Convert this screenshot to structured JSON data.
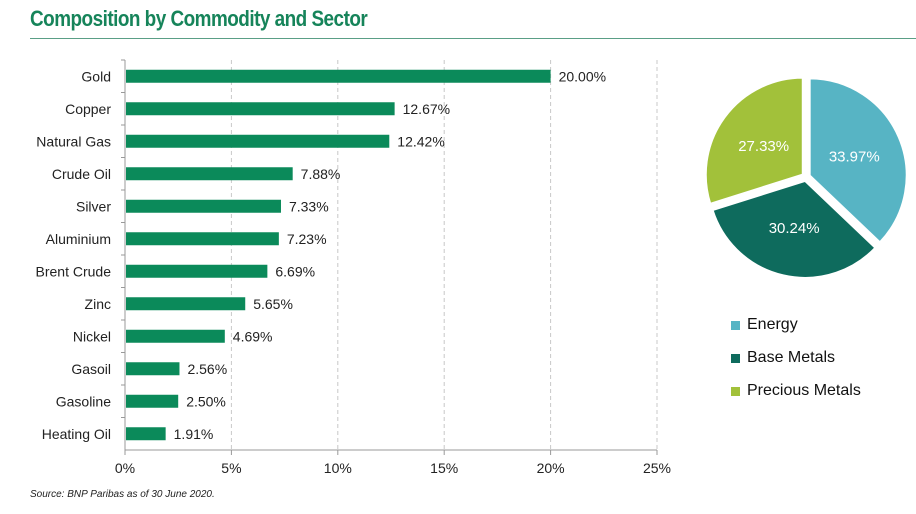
{
  "header": {
    "title": "Composition by Commodity and Sector"
  },
  "footer": {
    "source": "Source: BNP Paribas as of 30 June 2020."
  },
  "chart_data": [
    {
      "type": "bar",
      "orientation": "horizontal",
      "title": "",
      "xlabel": "",
      "ylabel": "",
      "categories": [
        "Gold",
        "Copper",
        "Natural Gas",
        "Crude Oil",
        "Silver",
        "Aluminium",
        "Brent Crude",
        "Zinc",
        "Nickel",
        "Gasoil",
        "Gasoline",
        "Heating Oil"
      ],
      "values": [
        20.0,
        12.67,
        12.42,
        7.88,
        7.33,
        7.23,
        6.69,
        5.65,
        4.69,
        2.56,
        2.5,
        1.91
      ],
      "value_labels": [
        "20.00%",
        "12.67%",
        "12.42%",
        "7.88%",
        "7.33%",
        "7.23%",
        "6.69%",
        "5.65%",
        "4.69%",
        "2.56%",
        "2.50%",
        "1.91%"
      ],
      "xlim": [
        0,
        25
      ],
      "xticks": [
        0,
        5,
        10,
        15,
        20,
        25
      ],
      "xtick_labels": [
        "0%",
        "5%",
        "10%",
        "15%",
        "20%",
        "25%"
      ],
      "grid": "vertical dashed",
      "bar_color": "#0b8a5a"
    },
    {
      "type": "pie",
      "title": "",
      "slices": [
        {
          "name": "Energy",
          "value": 33.97,
          "label": "33.97%",
          "color": "#57b4c4"
        },
        {
          "name": "Base Metals",
          "value": 30.24,
          "label": "30.24%",
          "color": "#0e6b5d"
        },
        {
          "name": "Precious Metals",
          "value": 27.33,
          "label": "27.33%",
          "color": "#a2c13a"
        }
      ],
      "legend": {
        "placement": "bottom",
        "entries": [
          "Energy",
          "Base Metals",
          "Precious Metals"
        ]
      }
    }
  ]
}
